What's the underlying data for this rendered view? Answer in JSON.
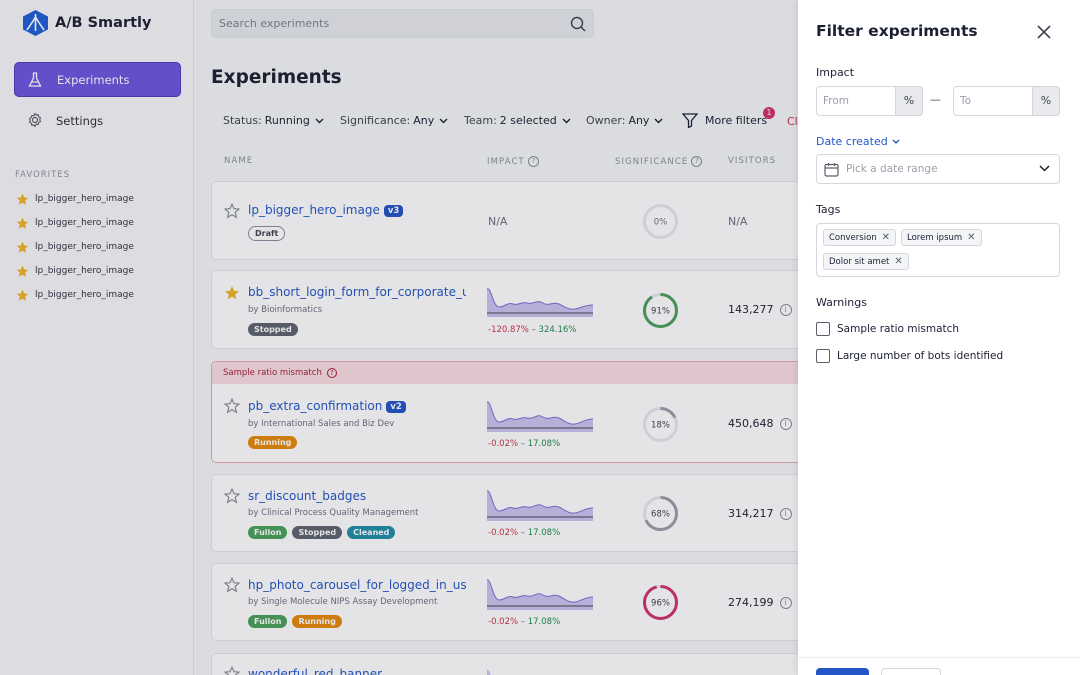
{
  "app": {
    "name": "A/B Smartly"
  },
  "sidebar": {
    "nav": [
      {
        "label": "Experiments",
        "icon": "flask-icon",
        "active": true
      },
      {
        "label": "Settings",
        "icon": "gear-icon"
      }
    ],
    "favorites_heading": "FAVORITES",
    "favorites": [
      "lp_bigger_hero_image",
      "lp_bigger_hero_image",
      "lp_bigger_hero_image",
      "lp_bigger_hero_image",
      "lp_bigger_hero_image"
    ]
  },
  "search": {
    "placeholder": "Search experiments"
  },
  "main": {
    "title": "Experiments",
    "filters": [
      {
        "key": "Status:",
        "value": "Running"
      },
      {
        "key": "Significance:",
        "value": "Any"
      },
      {
        "key": "Team:",
        "value": "2 selected"
      },
      {
        "key": "Owner:",
        "value": "Any"
      }
    ],
    "more_filters": {
      "label": "More filters",
      "count": "1"
    },
    "clear_partial": "Cl",
    "columns": [
      "NAME",
      "IMPACT",
      "SIGNIFICANCE",
      "VISITORS"
    ],
    "experiments": [
      {
        "name": "lp_bigger_hero_image",
        "version": "v3",
        "favorite": false,
        "by": "",
        "badges": [
          "Draft"
        ],
        "impact": "N/A",
        "significance": "0%",
        "significance_value": 0,
        "ring_color": "#d9dbe0",
        "visitors": "N/A"
      },
      {
        "name": "bb_short_login_form_for_corporate_users",
        "version": "",
        "favorite": true,
        "by": "by Bioinformatics",
        "badges": [
          "Stopped"
        ],
        "range_low": "-120.87%",
        "range_sep": " – ",
        "range_high": "324.16%",
        "significance": "91%",
        "significance_value": 91,
        "ring_color": "#49a05a",
        "visitors": "143,277"
      },
      {
        "warning": "Sample ratio mismatch",
        "name": "pb_extra_confirmation",
        "version": "v2",
        "favorite": false,
        "by": "by International Sales and Biz Dev",
        "badges": [
          "Running"
        ],
        "range_low": "-0.02%",
        "range_sep": " – ",
        "range_high": "17.08%",
        "significance": "18%",
        "significance_value": 18,
        "ring_color": "#9a9fab",
        "visitors": "450,648"
      },
      {
        "name": "sr_discount_badges",
        "version": "",
        "favorite": false,
        "by": "by Clinical Process Quality Management",
        "badges": [
          "Fullon",
          "Stopped",
          "Cleaned"
        ],
        "range_low": "-0.02%",
        "range_sep": " – ",
        "range_high": "17.08%",
        "significance": "68%",
        "significance_value": 68,
        "ring_color": "#9a9fab",
        "visitors": "314,217"
      },
      {
        "name": "hp_photo_carousel_for_logged_in_users",
        "version": "",
        "favorite": false,
        "by": "by Single Molecule NIPS Assay Development",
        "badges": [
          "Fullon",
          "Running"
        ],
        "range_low": "-0.02%",
        "range_sep": " – ",
        "range_high": "17.08%",
        "significance": "96%",
        "significance_value": 96,
        "ring_color": "#d0336a",
        "visitors": "274,199"
      },
      {
        "name": "wonderful_red_banner",
        "version": "",
        "favorite": false
      }
    ]
  },
  "filter_panel": {
    "title": "Filter experiments",
    "impact_label": "Impact",
    "from_placeholder": "From",
    "to_placeholder": "To",
    "unit": "%",
    "dash": "—",
    "date_label": "Date created",
    "date_placeholder": "Pick a date range",
    "tags_label": "Tags",
    "tags": [
      "Conversion",
      "Lorem ipsum",
      "Dolor sit amet"
    ],
    "warnings_label": "Warnings",
    "warnings": [
      {
        "label": "Sample ratio mismatch",
        "checked": false
      },
      {
        "label": "Large number of bots identified",
        "checked": false
      }
    ]
  }
}
